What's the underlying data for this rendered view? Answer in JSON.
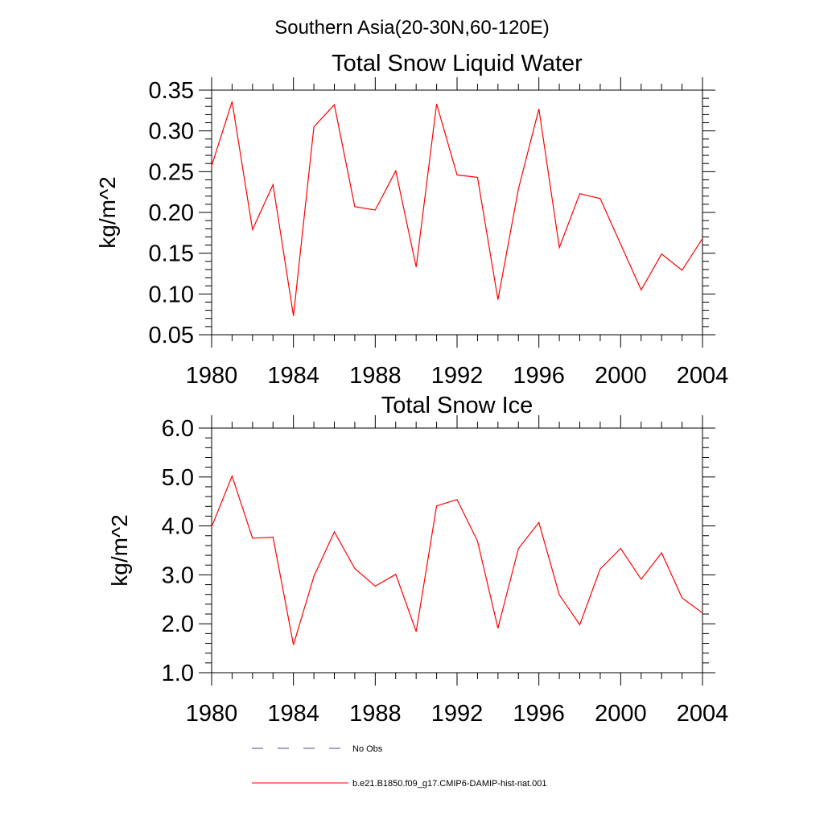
{
  "page_title": "Southern Asia(20-30N,60-120E)",
  "colors": {
    "series": "#ff0000",
    "obs": "#4a4a8a",
    "axis": "#000000"
  },
  "chart_data": [
    {
      "type": "line",
      "title": "Total Snow Liquid Water",
      "xlabel": "",
      "ylabel": "kg/m^2",
      "xlim": [
        1980,
        2004
      ],
      "ylim": [
        0.05,
        0.35
      ],
      "x_ticks": [
        "1980",
        "1984",
        "1988",
        "1992",
        "1996",
        "2000",
        "2004"
      ],
      "y_ticks": [
        "0.05",
        "0.10",
        "0.15",
        "0.20",
        "0.25",
        "0.30",
        "0.35"
      ],
      "x": [
        1980,
        1981,
        1982,
        1983,
        1984,
        1985,
        1986,
        1987,
        1988,
        1989,
        1990,
        1991,
        1992,
        1993,
        1994,
        1995,
        1996,
        1997,
        1998,
        1999,
        2000,
        2001,
        2002,
        2003,
        2004
      ],
      "series": [
        {
          "name": "b.e21.B1850.f09_g17.CMIP6-DAMIP-hist-nat.001",
          "values": [
            0.257,
            0.336,
            0.179,
            0.234,
            0.073,
            0.305,
            0.332,
            0.207,
            0.203,
            0.251,
            0.133,
            0.333,
            0.246,
            0.243,
            0.093,
            0.229,
            0.327,
            0.157,
            0.223,
            0.217,
            0.161,
            0.105,
            0.149,
            0.129,
            0.168
          ]
        }
      ]
    },
    {
      "type": "line",
      "title": "Total Snow Ice",
      "xlabel": "",
      "ylabel": "kg/m^2",
      "xlim": [
        1980,
        2004
      ],
      "ylim": [
        1.0,
        6.0
      ],
      "x_ticks": [
        "1980",
        "1984",
        "1988",
        "1992",
        "1996",
        "2000",
        "2004"
      ],
      "y_ticks": [
        "1.0",
        "2.0",
        "3.0",
        "4.0",
        "5.0",
        "6.0"
      ],
      "x": [
        1980,
        1981,
        1982,
        1983,
        1984,
        1985,
        1986,
        1987,
        1988,
        1989,
        1990,
        1991,
        1992,
        1993,
        1994,
        1995,
        1996,
        1997,
        1998,
        1999,
        2000,
        2001,
        2002,
        2003,
        2004
      ],
      "series": [
        {
          "name": "b.e21.B1850.f09_g17.CMIP6-DAMIP-hist-nat.001",
          "values": [
            3.98,
            5.02,
            3.75,
            3.77,
            1.57,
            2.97,
            3.88,
            3.13,
            2.77,
            3.01,
            1.84,
            4.41,
            4.54,
            3.69,
            1.91,
            3.54,
            4.07,
            2.59,
            1.98,
            3.12,
            3.54,
            2.91,
            3.45,
            2.53,
            2.22
          ]
        }
      ]
    }
  ],
  "legend": [
    {
      "label": "No Obs",
      "style": "dashed"
    },
    {
      "label": "b.e21.B1850.f09_g17.CMIP6-DAMIP-hist-nat.001",
      "style": "solid"
    }
  ]
}
